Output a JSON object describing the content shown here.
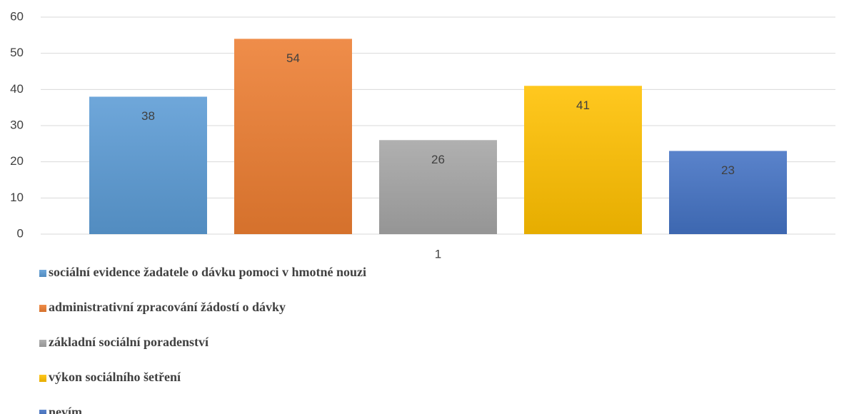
{
  "chart_data": {
    "type": "bar",
    "categories": [
      "1"
    ],
    "series": [
      {
        "name": "sociální evidence žadatele o dávku pomoci v hmotné nouzi",
        "color": "#5b9bd5",
        "values": [
          38
        ]
      },
      {
        "name": "administrativní zpracování žádostí o dávky",
        "color": "#ed7d31",
        "values": [
          54
        ]
      },
      {
        "name": "základní sociální poradenství",
        "color": "#a5a5a5",
        "values": [
          26
        ]
      },
      {
        "name": "výkon sociálního šetření",
        "color": "#ffc000",
        "values": [
          41
        ]
      },
      {
        "name": "nevím",
        "color": "#4472c4",
        "values": [
          23
        ]
      }
    ],
    "ylim": [
      0,
      60
    ],
    "yticks": [
      0,
      10,
      20,
      30,
      40,
      50,
      60
    ],
    "grid": true,
    "legend": "bottom"
  }
}
